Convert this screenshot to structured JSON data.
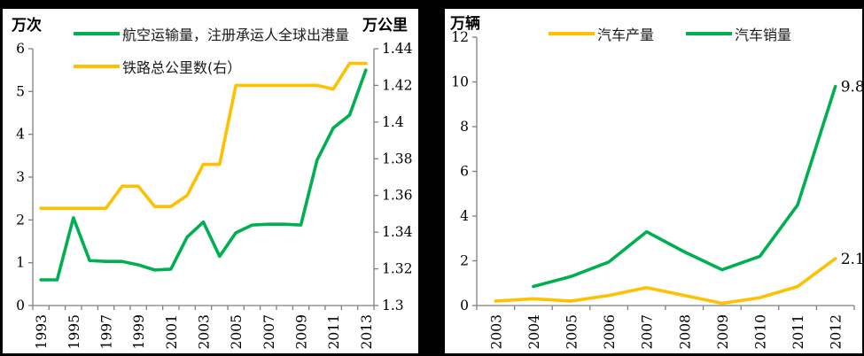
{
  "page": {
    "background": "#000000",
    "panel_background": "#ffffff",
    "axis_color": "#808080",
    "text_color": "#000000"
  },
  "chart_data": [
    {
      "type": "line",
      "unit_label_left": "万次",
      "unit_label_right": "万公里",
      "categories": [
        "1993",
        "1994",
        "1995",
        "1996",
        "1997",
        "1998",
        "1999",
        "2000",
        "2001",
        "2002",
        "2003",
        "2004",
        "2005",
        "2006",
        "2007",
        "2008",
        "2009",
        "2010",
        "2011",
        "2012",
        "2013"
      ],
      "x_axis": {
        "labels_shown_every": 2,
        "label_rotation": -90
      },
      "left_axis": {
        "min": 0,
        "max": 6,
        "ticks": [
          "0",
          "1",
          "2",
          "3",
          "4",
          "5",
          "6"
        ]
      },
      "right_axis": {
        "min": 1.3,
        "max": 1.44,
        "ticks": [
          "1.3",
          "1.32",
          "1.34",
          "1.36",
          "1.38",
          "1.4",
          "1.42",
          "1.44"
        ]
      },
      "grid": false,
      "legend_position": "top-stacked",
      "series": [
        {
          "name": "航空运输量，注册承运人全球出港量",
          "color": "#00B050",
          "axis": "left",
          "values": [
            0.6,
            0.6,
            2.05,
            1.05,
            1.03,
            1.03,
            0.95,
            0.83,
            0.85,
            1.6,
            1.95,
            1.15,
            1.7,
            1.88,
            1.9,
            1.9,
            1.88,
            3.4,
            4.15,
            4.45,
            5.5
          ]
        },
        {
          "name": "铁路总公里数(右）",
          "color": "#FFC000",
          "axis": "right",
          "values": [
            1.353,
            1.353,
            1.353,
            1.353,
            1.353,
            1.365,
            1.365,
            1.354,
            1.354,
            1.36,
            1.377,
            1.377,
            1.42,
            1.42,
            1.42,
            1.42,
            1.42,
            1.42,
            1.418,
            1.432,
            1.432
          ]
        }
      ]
    },
    {
      "type": "line",
      "unit_label_left": "万辆",
      "categories": [
        "2003",
        "2004",
        "2005",
        "2006",
        "2007",
        "2008",
        "2009",
        "2010",
        "2011",
        "2012"
      ],
      "x_axis": {
        "labels_shown_every": 1,
        "label_rotation": -90
      },
      "left_axis": {
        "min": 0,
        "max": 12,
        "ticks": [
          "0",
          "2",
          "4",
          "6",
          "8",
          "10",
          "12"
        ]
      },
      "grid": false,
      "legend_position": "top-inline",
      "series": [
        {
          "name": "汽车产量",
          "color": "#FFC000",
          "axis": "left",
          "values": [
            0.2,
            0.3,
            0.2,
            0.45,
            0.8,
            0.45,
            0.1,
            0.35,
            0.85,
            2.1
          ],
          "end_label": "2.1"
        },
        {
          "name": "汽车销量",
          "color": "#00B050",
          "axis": "left",
          "values": [
            null,
            0.85,
            1.3,
            1.95,
            3.3,
            2.4,
            1.6,
            2.2,
            4.5,
            9.8
          ],
          "end_label": "9.8"
        }
      ]
    }
  ]
}
